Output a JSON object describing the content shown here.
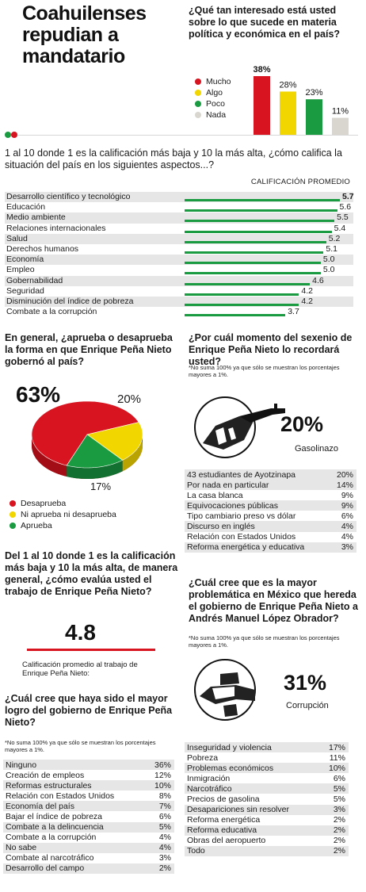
{
  "title": "Coahuilenses repudian a mandatario",
  "interest": {
    "question": "¿Qué tan interesado está usted sobre lo que sucede en materia política y económica en el país?",
    "legend": [
      {
        "label": "Mucho",
        "color": "#d7141f"
      },
      {
        "label": "Algo",
        "color": "#f2d600"
      },
      {
        "label": "Poco",
        "color": "#1a9b41"
      },
      {
        "label": "Nada",
        "color": "#d9d6cf"
      }
    ],
    "labels": [
      "38%",
      "28%",
      "23%",
      "11%"
    ]
  },
  "aspects": {
    "question": "1 al 10 donde 1 es la calificación más baja y 10 la más alta, ¿cómo califica la situación del país en los siguientes aspectos...?",
    "column_header": "CALIFICACIÓN PROMEDIO",
    "labels": [
      "5.7",
      "5.6",
      "5.5",
      "5.4",
      "5.2",
      "5.1",
      "5.0",
      "5.0",
      "4.6",
      "4.2",
      "4.2",
      "3.7"
    ]
  },
  "approval": {
    "question": "En general, ¿aprueba o desaprueba la forma en que Enrique Peña Nieto gobernó al país?",
    "big_label": "63%",
    "label_yellow": "20%",
    "label_green": "17%",
    "legend": [
      {
        "label": "Desaprueba",
        "color": "#d7141f"
      },
      {
        "label": "Ni aprueba ni desaprueba",
        "color": "#f2d600"
      },
      {
        "label": "Aprueba",
        "color": "#1a9b41"
      }
    ]
  },
  "remember": {
    "question": "¿Por cuál momento del sexenio de Enrique Peña Nieto lo recordará usted?",
    "note": "*No suma 100% ya que sólo se muestran los porcentajes mayores a 1%.",
    "highlight_value": "20%",
    "highlight_label": "Gasolinazo",
    "rows": [
      {
        "label": "43 estudiantes de Ayotzinapa",
        "value": "20%"
      },
      {
        "label": "Por nada en particular",
        "value": "14%"
      },
      {
        "label": "La casa blanca",
        "value": "9%"
      },
      {
        "label": "Equivocaciones públicas",
        "value": "9%"
      },
      {
        "label": "Tipo cambiario preso vs dólar",
        "value": "6%"
      },
      {
        "label": "Discurso en inglés",
        "value": "4%"
      },
      {
        "label": "Relación con Estados Unidos",
        "value": "4%"
      },
      {
        "label": "Reforma energética y educativa",
        "value": "3%"
      }
    ]
  },
  "grade": {
    "question": "Del 1 al 10 donde 1 es la calificación más baja y 10 la más alta, de manera general, ¿cómo evalúa usted el trabajo de Enrique Peña Nieto?",
    "value": "4.8",
    "caption": "Calificación promedio al trabajo de Enrique Peña Nieto:"
  },
  "problem": {
    "question": "¿Cuál cree que es la mayor problemática en México que hereda el gobierno de Enrique Peña Nieto a Andrés Manuel López Obrador?",
    "note": "*No suma 100% ya que sólo se muestran los porcentajes mayores a 1%.",
    "highlight_value": "31%",
    "highlight_label": "Corrupción",
    "rows": [
      {
        "label": "Inseguridad y violencia",
        "value": "17%"
      },
      {
        "label": "Pobreza",
        "value": "11%"
      },
      {
        "label": "Problemas económicos",
        "value": "10%"
      },
      {
        "label": "Inmigración",
        "value": "6%"
      },
      {
        "label": "Narcotráfico",
        "value": "5%"
      },
      {
        "label": "Precios de gasolina",
        "value": "5%"
      },
      {
        "label": "Desapariciones sin resolver",
        "value": "3%"
      },
      {
        "label": "Reforma energética",
        "value": "2%"
      },
      {
        "label": "Reforma educativa",
        "value": "2%"
      },
      {
        "label": "Obras del aeropuerto",
        "value": "2%"
      },
      {
        "label": "Todo",
        "value": "2%"
      }
    ]
  },
  "achievement": {
    "question": "¿Cuál cree que haya sido el mayor logro del gobierno de Enrique Peña Nieto?",
    "note": "*No suma 100% ya que sólo se muestran los porcentajes mayores a 1%.",
    "rows": [
      {
        "label": "Ninguno",
        "value": "36%"
      },
      {
        "label": "Creación de empleos",
        "value": "12%"
      },
      {
        "label": "Reformas estructurales",
        "value": "10%"
      },
      {
        "label": "Relación con Estados Unidos",
        "value": "8%"
      },
      {
        "label": "Economía del país",
        "value": "7%"
      },
      {
        "label": "Bajar el índice de pobreza",
        "value": "6%"
      },
      {
        "label": "Combate a la delincuencia",
        "value": "5%"
      },
      {
        "label": "Combate a la corrupción",
        "value": "4%"
      },
      {
        "label": "No sabe",
        "value": "4%"
      },
      {
        "label": "Combate al narcotráfico",
        "value": "3%"
      },
      {
        "label": "Desarrollo del campo",
        "value": "2%"
      }
    ]
  },
  "chart_data": [
    {
      "type": "bar",
      "categories": [
        "Mucho",
        "Algo",
        "Poco",
        "Nada"
      ],
      "values": [
        38,
        28,
        23,
        11
      ],
      "colors": [
        "#d7141f",
        "#f2d600",
        "#1a9b41",
        "#d9d6cf"
      ],
      "ylim": [
        0,
        38
      ]
    },
    {
      "type": "bar",
      "orientation": "horizontal",
      "categories": [
        "Desarrollo científico y tecnológico",
        "Educación",
        "Medio ambiente",
        "Relaciones internacionales",
        "Salud",
        "Derechos humanos",
        "Economía",
        "Empleo",
        "Gobernabilidad",
        "Seguridad",
        "Disminución del índice de pobreza",
        "Combate a la corrupción"
      ],
      "values": [
        5.7,
        5.6,
        5.5,
        5.4,
        5.2,
        5.1,
        5.0,
        5.0,
        4.6,
        4.2,
        4.2,
        3.7
      ],
      "xlim": [
        0,
        5.7
      ],
      "color": "#1a9b41"
    },
    {
      "type": "pie",
      "categories": [
        "Desaprueba",
        "Ni aprueba ni desaprueba",
        "Aprueba"
      ],
      "values": [
        63,
        20,
        17
      ],
      "colors": [
        "#d7141f",
        "#f2d600",
        "#1a9b41"
      ]
    }
  ]
}
